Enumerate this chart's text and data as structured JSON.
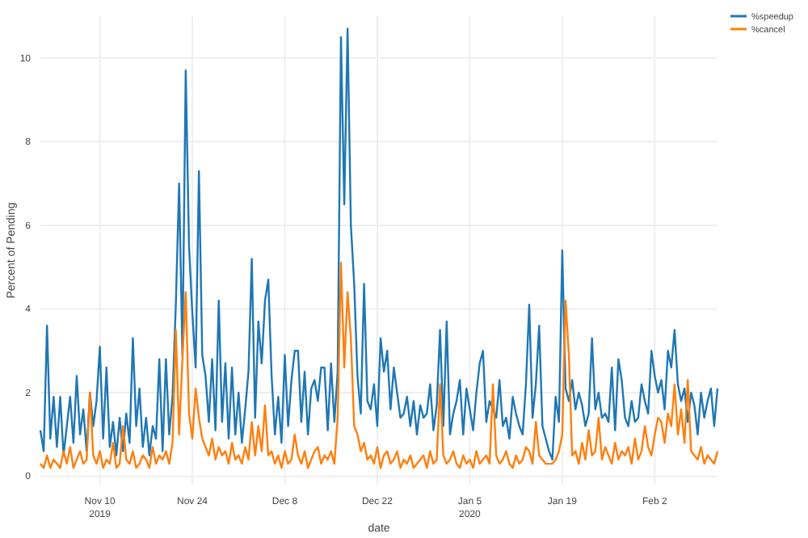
{
  "chart_data": {
    "type": "line",
    "xlabel": "date",
    "ylabel": "Percent of Pending",
    "x": [
      "2019-11-01T00:00",
      "2019-11-01T12:00",
      "2019-11-02T00:00",
      "2019-11-02T12:00",
      "2019-11-03T00:00",
      "2019-11-03T12:00",
      "2019-11-04T00:00",
      "2019-11-04T12:00",
      "2019-11-05T00:00",
      "2019-11-05T12:00",
      "2019-11-06T00:00",
      "2019-11-06T12:00",
      "2019-11-07T00:00",
      "2019-11-07T12:00",
      "2019-11-08T00:00",
      "2019-11-08T12:00",
      "2019-11-09T00:00",
      "2019-11-09T12:00",
      "2019-11-10T00:00",
      "2019-11-10T12:00",
      "2019-11-11T00:00",
      "2019-11-11T12:00",
      "2019-11-12T00:00",
      "2019-11-12T12:00",
      "2019-11-13T00:00",
      "2019-11-13T12:00",
      "2019-11-14T00:00",
      "2019-11-14T12:00",
      "2019-11-15T00:00",
      "2019-11-15T12:00",
      "2019-11-16T00:00",
      "2019-11-16T12:00",
      "2019-11-17T00:00",
      "2019-11-17T12:00",
      "2019-11-18T00:00",
      "2019-11-18T12:00",
      "2019-11-19T00:00",
      "2019-11-19T12:00",
      "2019-11-20T00:00",
      "2019-11-20T12:00",
      "2019-11-21T00:00",
      "2019-11-21T12:00",
      "2019-11-22T00:00",
      "2019-11-22T12:00",
      "2019-11-23T00:00",
      "2019-11-23T12:00",
      "2019-11-24T00:00",
      "2019-11-24T12:00",
      "2019-11-25T00:00",
      "2019-11-25T12:00",
      "2019-11-26T00:00",
      "2019-11-26T12:00",
      "2019-11-27T00:00",
      "2019-11-27T12:00",
      "2019-11-28T00:00",
      "2019-11-28T12:00",
      "2019-11-29T00:00",
      "2019-11-29T12:00",
      "2019-11-30T00:00",
      "2019-11-30T12:00",
      "2019-12-01T00:00",
      "2019-12-01T12:00",
      "2019-12-02T00:00",
      "2019-12-02T12:00",
      "2019-12-03T00:00",
      "2019-12-03T12:00",
      "2019-12-04T00:00",
      "2019-12-04T12:00",
      "2019-12-05T00:00",
      "2019-12-05T12:00",
      "2019-12-06T00:00",
      "2019-12-06T12:00",
      "2019-12-07T00:00",
      "2019-12-07T12:00",
      "2019-12-08T00:00",
      "2019-12-08T12:00",
      "2019-12-09T00:00",
      "2019-12-09T12:00",
      "2019-12-10T00:00",
      "2019-12-10T12:00",
      "2019-12-11T00:00",
      "2019-12-11T12:00",
      "2019-12-12T00:00",
      "2019-12-12T12:00",
      "2019-12-13T00:00",
      "2019-12-13T12:00",
      "2019-12-14T00:00",
      "2019-12-14T12:00",
      "2019-12-15T00:00",
      "2019-12-15T12:00",
      "2019-12-16T00:00",
      "2019-12-16T12:00",
      "2019-12-17T00:00",
      "2019-12-17T12:00",
      "2019-12-18T00:00",
      "2019-12-18T12:00",
      "2019-12-19T00:00",
      "2019-12-19T12:00",
      "2019-12-20T00:00",
      "2019-12-20T12:00",
      "2019-12-21T00:00",
      "2019-12-21T12:00",
      "2019-12-22T00:00",
      "2019-12-22T12:00",
      "2019-12-23T00:00",
      "2019-12-23T12:00",
      "2019-12-24T00:00",
      "2019-12-24T12:00",
      "2019-12-25T00:00",
      "2019-12-25T12:00",
      "2019-12-26T00:00",
      "2019-12-26T12:00",
      "2019-12-27T00:00",
      "2019-12-27T12:00",
      "2019-12-28T00:00",
      "2019-12-28T12:00",
      "2019-12-29T00:00",
      "2019-12-29T12:00",
      "2019-12-30T00:00",
      "2019-12-30T12:00",
      "2019-12-31T00:00",
      "2019-12-31T12:00",
      "2020-01-01T00:00",
      "2020-01-01T12:00",
      "2020-01-02T00:00",
      "2020-01-02T12:00",
      "2020-01-03T00:00",
      "2020-01-03T12:00",
      "2020-01-04T00:00",
      "2020-01-04T12:00",
      "2020-01-05T00:00",
      "2020-01-05T12:00",
      "2020-01-06T00:00",
      "2020-01-06T12:00",
      "2020-01-07T00:00",
      "2020-01-07T12:00",
      "2020-01-08T00:00",
      "2020-01-08T12:00",
      "2020-01-09T00:00",
      "2020-01-09T12:00",
      "2020-01-10T00:00",
      "2020-01-10T12:00",
      "2020-01-11T00:00",
      "2020-01-11T12:00",
      "2020-01-12T00:00",
      "2020-01-12T12:00",
      "2020-01-13T00:00",
      "2020-01-13T12:00",
      "2020-01-14T00:00",
      "2020-01-14T12:00",
      "2020-01-15T00:00",
      "2020-01-15T12:00",
      "2020-01-16T00:00",
      "2020-01-16T12:00",
      "2020-01-17T00:00",
      "2020-01-17T12:00",
      "2020-01-18T00:00",
      "2020-01-18T12:00",
      "2020-01-19T00:00",
      "2020-01-19T12:00",
      "2020-01-20T00:00",
      "2020-01-20T12:00",
      "2020-01-21T00:00",
      "2020-01-21T12:00",
      "2020-01-22T00:00",
      "2020-01-22T12:00",
      "2020-01-23T00:00",
      "2020-01-23T12:00",
      "2020-01-24T00:00",
      "2020-01-24T12:00",
      "2020-01-25T00:00",
      "2020-01-25T12:00",
      "2020-01-26T00:00",
      "2020-01-26T12:00",
      "2020-01-27T00:00",
      "2020-01-27T12:00",
      "2020-01-28T00:00",
      "2020-01-28T12:00",
      "2020-01-29T00:00",
      "2020-01-29T12:00",
      "2020-01-30T00:00",
      "2020-01-30T12:00",
      "2020-01-31T00:00",
      "2020-01-31T12:00",
      "2020-02-01T00:00",
      "2020-02-01T12:00",
      "2020-02-02T00:00",
      "2020-02-02T12:00",
      "2020-02-03T00:00",
      "2020-02-03T12:00",
      "2020-02-04T00:00",
      "2020-02-04T12:00",
      "2020-02-05T00:00",
      "2020-02-05T12:00",
      "2020-02-06T00:00",
      "2020-02-06T12:00",
      "2020-02-07T00:00",
      "2020-02-07T12:00",
      "2020-02-08T00:00",
      "2020-02-08T12:00",
      "2020-02-09T00:00",
      "2020-02-09T12:00",
      "2020-02-10T00:00",
      "2020-02-10T12:00",
      "2020-02-11T00:00",
      "2020-02-11T12:00"
    ],
    "series": [
      {
        "name": "%speedup",
        "color": "#1f77b4",
        "values": [
          1.1,
          0.6,
          3.6,
          0.9,
          1.9,
          0.7,
          1.9,
          0.5,
          1.2,
          1.9,
          0.8,
          2.4,
          1.0,
          1.6,
          0.6,
          2.0,
          1.2,
          1.8,
          3.1,
          0.9,
          2.6,
          0.7,
          1.3,
          0.5,
          1.4,
          0.6,
          1.5,
          0.8,
          3.3,
          1.2,
          2.1,
          0.7,
          1.4,
          0.5,
          1.2,
          0.9,
          2.8,
          0.6,
          2.8,
          1.0,
          1.9,
          4.1,
          7.0,
          2.9,
          9.7,
          5.5,
          3.9,
          2.6,
          7.3,
          2.9,
          2.4,
          1.3,
          2.8,
          1.1,
          4.2,
          1.3,
          2.7,
          0.9,
          2.6,
          1.0,
          2.0,
          0.8,
          1.6,
          2.5,
          5.2,
          1.4,
          3.7,
          2.7,
          4.2,
          4.7,
          2.4,
          1.0,
          1.9,
          0.8,
          2.9,
          1.2,
          2.3,
          3.0,
          3.0,
          1.3,
          2.5,
          1.0,
          2.1,
          2.3,
          1.8,
          2.6,
          2.6,
          1.1,
          2.7,
          1.3,
          2.5,
          10.5,
          6.5,
          10.7,
          6.0,
          4.6,
          2.4,
          1.5,
          4.6,
          1.8,
          1.6,
          2.2,
          1.2,
          3.3,
          2.5,
          3.0,
          1.6,
          2.6,
          2.0,
          1.4,
          1.5,
          1.9,
          1.2,
          1.8,
          1.0,
          1.7,
          1.4,
          1.5,
          2.2,
          1.1,
          1.7,
          3.5,
          1.2,
          3.7,
          1.0,
          1.5,
          1.8,
          2.3,
          1.0,
          2.1,
          1.6,
          1.1,
          2.0,
          2.7,
          3.0,
          1.3,
          1.8,
          1.6,
          1.4,
          2.3,
          1.2,
          1.4,
          0.9,
          1.9,
          1.5,
          1.2,
          1.0,
          2.2,
          4.1,
          1.4,
          2.2,
          3.6,
          1.2,
          0.9,
          0.6,
          0.4,
          1.9,
          1.3,
          5.4,
          2.1,
          1.8,
          2.3,
          1.6,
          2.0,
          1.7,
          1.2,
          1.5,
          3.3,
          1.6,
          2.0,
          1.4,
          1.5,
          1.3,
          2.6,
          1.1,
          2.8,
          2.3,
          1.4,
          1.2,
          1.8,
          1.3,
          1.4,
          2.2,
          1.8,
          1.5,
          3.0,
          2.4,
          2.0,
          2.3,
          1.6,
          3.0,
          2.6,
          3.5,
          2.2,
          1.8,
          2.1,
          1.3,
          2.0,
          1.7,
          1.0,
          2.0,
          1.4,
          1.8,
          2.1,
          1.2,
          2.1
        ]
      },
      {
        "name": "%cancel",
        "color": "#ff7f0e",
        "values": [
          0.3,
          0.2,
          0.5,
          0.2,
          0.4,
          0.3,
          0.2,
          0.6,
          0.3,
          0.7,
          0.2,
          0.4,
          0.6,
          0.3,
          0.4,
          2.0,
          0.5,
          0.3,
          0.6,
          0.2,
          0.4,
          0.3,
          0.8,
          0.2,
          0.3,
          1.2,
          0.4,
          0.3,
          0.6,
          0.2,
          0.3,
          0.5,
          0.4,
          0.2,
          0.7,
          0.3,
          0.5,
          0.4,
          0.6,
          0.3,
          0.8,
          3.5,
          1.0,
          2.8,
          4.4,
          1.5,
          0.9,
          2.1,
          1.4,
          0.9,
          0.7,
          0.5,
          0.9,
          0.4,
          0.7,
          0.5,
          0.6,
          0.3,
          0.8,
          0.4,
          0.5,
          0.3,
          0.7,
          0.4,
          1.3,
          0.5,
          1.2,
          0.6,
          1.7,
          0.5,
          0.6,
          0.3,
          0.5,
          0.2,
          0.6,
          0.3,
          0.4,
          1.0,
          0.5,
          0.3,
          0.6,
          0.2,
          0.4,
          0.6,
          0.7,
          0.3,
          0.5,
          0.4,
          0.6,
          0.3,
          1.4,
          5.1,
          2.6,
          4.4,
          3.3,
          1.2,
          1.0,
          0.6,
          0.8,
          0.4,
          0.5,
          0.3,
          0.7,
          0.2,
          0.5,
          0.6,
          0.3,
          0.4,
          0.6,
          0.2,
          0.4,
          0.3,
          0.5,
          0.2,
          0.3,
          0.4,
          0.5,
          0.2,
          0.6,
          0.3,
          0.4,
          2.2,
          0.5,
          0.3,
          0.4,
          0.6,
          0.3,
          0.2,
          0.5,
          0.3,
          0.4,
          0.2,
          0.6,
          0.3,
          0.4,
          0.5,
          0.3,
          2.2,
          0.5,
          0.3,
          0.4,
          0.6,
          0.3,
          0.2,
          0.5,
          0.3,
          0.4,
          0.7,
          0.6,
          0.3,
          1.3,
          0.5,
          0.4,
          0.3,
          0.3,
          0.3,
          0.4,
          0.6,
          1.0,
          4.2,
          2.9,
          0.5,
          0.6,
          0.3,
          0.8,
          0.4,
          1.1,
          0.5,
          0.6,
          1.4,
          0.4,
          0.7,
          0.5,
          0.3,
          0.8,
          0.4,
          0.6,
          0.5,
          0.7,
          0.3,
          0.9,
          0.4,
          0.6,
          1.2,
          0.7,
          0.5,
          1.0,
          1.4,
          1.3,
          0.8,
          1.5,
          1.2,
          2.2,
          1.0,
          1.6,
          0.8,
          2.3,
          0.6,
          0.5,
          0.4,
          0.7,
          0.3,
          0.5,
          0.4,
          0.3,
          0.6
        ]
      }
    ],
    "xlim": [
      "2019-11-01",
      "2020-02-11T12:00"
    ],
    "xticks": [
      {
        "value": "2019-11-10",
        "label": "Nov 10\n2019"
      },
      {
        "value": "2019-11-24",
        "label": "Nov 24"
      },
      {
        "value": "2019-12-08",
        "label": "Dec 8"
      },
      {
        "value": "2019-12-22",
        "label": "Dec 22"
      },
      {
        "value": "2020-01-05",
        "label": "Jan 5\n2020"
      },
      {
        "value": "2020-01-19",
        "label": "Jan 19"
      },
      {
        "value": "2020-02-02",
        "label": "Feb 2"
      }
    ],
    "ylim": [
      -0.2,
      11
    ],
    "yticks": [
      0,
      2,
      4,
      6,
      8,
      10
    ],
    "grid": true,
    "legend": "top right",
    "line_style": "solid"
  }
}
